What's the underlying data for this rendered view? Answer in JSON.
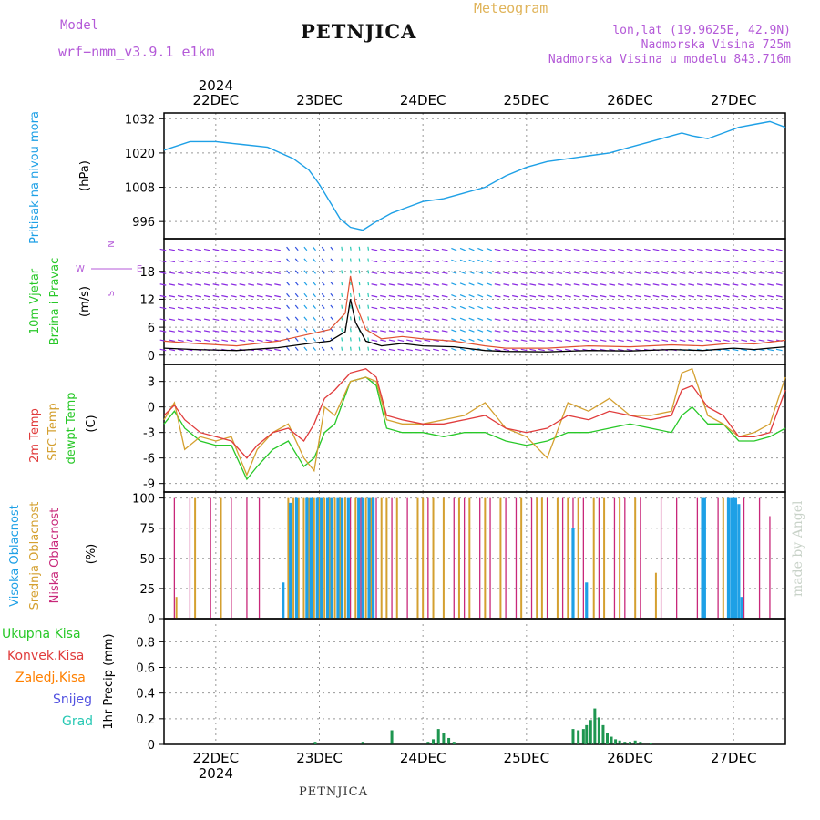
{
  "header": {
    "model_label": "Model",
    "model_name": "wrf−nmm_v3.9.1  e1km",
    "station": "PETNJICA",
    "meteogram": "Meteogram",
    "location": "lon,lat (19.9625E, 42.9N)",
    "elevation": "Nadmorska Visina 725m",
    "elevation_model": "Nadmorska Visina u modelu 843.716m"
  },
  "footer_station": "PETNJICA",
  "watermark": "made by Angel",
  "axis_dates": {
    "top_year": "2024",
    "bottom_year": "2024",
    "labels": [
      "22DEC",
      "23DEC",
      "24DEC",
      "25DEC",
      "26DEC",
      "27DEC"
    ]
  },
  "colors": {
    "pressure": "#1ea0e6",
    "wind_speed": "#000000",
    "wind_gust": "#e05030",
    "temp_2m": "#e03c3c",
    "temp_sfc": "#d4a030",
    "dewpoint": "#28c828",
    "cloud_high": "#1ea0e6",
    "cloud_mid": "#d4a030",
    "cloud_low": "#c8287a",
    "precip_total": "#1e9650",
    "label_green": "#28c828",
    "label_red": "#e03c3c",
    "label_orange": "#ff8000",
    "label_blue": "#5050e0",
    "label_teal": "#28c8b4",
    "label_magenta": "#c8287a",
    "label_purple": "#b45ad8"
  },
  "chart_data": [
    {
      "type": "line",
      "panel": "pressure",
      "ylabel_left": "Pritisak na nivou mora",
      "ylabel_unit": "(hPa)",
      "ylim": [
        990,
        1034
      ],
      "yticks": [
        996,
        1008,
        1020,
        1032
      ],
      "x_start_day": 21.5,
      "x_end_day": 27.5,
      "series": [
        {
          "x": [
            21.5,
            21.75,
            22.0,
            22.25,
            22.5,
            22.75,
            22.9,
            23.0,
            23.1,
            23.2,
            23.3,
            23.42,
            23.55,
            23.7,
            23.85,
            24.0,
            24.2,
            24.4,
            24.6,
            24.8,
            25.0,
            25.2,
            25.4,
            25.6,
            25.8,
            26.0,
            26.2,
            26.4,
            26.5,
            26.6,
            26.75,
            26.9,
            27.05,
            27.2,
            27.35,
            27.5
          ],
          "values": [
            1021,
            1024,
            1024,
            1023,
            1022,
            1018,
            1014,
            1009,
            1003,
            997,
            994,
            993,
            996,
            999,
            1001,
            1003,
            1004,
            1006,
            1008,
            1012,
            1015,
            1017,
            1018,
            1019,
            1020,
            1022,
            1024,
            1026,
            1027,
            1026,
            1025,
            1027,
            1029,
            1030,
            1031,
            1029
          ]
        }
      ]
    },
    {
      "type": "line",
      "panel": "wind",
      "ylabel_left_1": "10m Vjetar",
      "ylabel_left_2": "Brzina i Pravac",
      "ylabel_unit": "(m/s)",
      "compass_n": "N",
      "compass_w": "W",
      "compass_e": "E",
      "compass_s": "S",
      "ylim": [
        -2,
        25
      ],
      "yticks": [
        0,
        6,
        12,
        18
      ],
      "series": [
        {
          "name": "speed",
          "x": [
            21.5,
            21.8,
            22.2,
            22.6,
            22.9,
            23.1,
            23.25,
            23.3,
            23.35,
            23.45,
            23.6,
            23.8,
            24.0,
            24.3,
            24.6,
            24.8,
            25.2,
            25.6,
            26.0,
            26.4,
            26.7,
            27.0,
            27.2,
            27.5
          ],
          "values": [
            1.5,
            1.2,
            1.0,
            1.6,
            2.5,
            3.0,
            5.0,
            12.0,
            7.0,
            3.0,
            2.0,
            2.5,
            2.0,
            1.8,
            1.0,
            0.8,
            0.7,
            1.0,
            0.9,
            1.2,
            1.0,
            1.5,
            1.2,
            1.8
          ]
        },
        {
          "name": "gust",
          "x": [
            21.5,
            21.8,
            22.2,
            22.6,
            22.9,
            23.1,
            23.25,
            23.3,
            23.35,
            23.45,
            23.6,
            23.8,
            24.0,
            24.3,
            24.6,
            24.8,
            25.2,
            25.6,
            26.0,
            26.4,
            26.7,
            27.0,
            27.2,
            27.5
          ],
          "values": [
            3.0,
            2.5,
            2.0,
            3.0,
            4.5,
            5.5,
            9.0,
            17.0,
            11.0,
            5.5,
            3.5,
            4.0,
            3.5,
            3.0,
            2.0,
            1.5,
            1.5,
            2.0,
            1.8,
            2.2,
            2.0,
            2.6,
            2.4,
            3.2
          ]
        }
      ]
    },
    {
      "type": "line",
      "panel": "temperature",
      "ylabel_left_1": "2m Temp",
      "ylabel_left_2": "SFC Temp",
      "ylabel_left_3": "dewpt Temp",
      "ylabel_unit": "(C)",
      "ylim": [
        -10,
        5
      ],
      "yticks": [
        -9,
        -6,
        -3,
        0,
        3
      ],
      "x": [
        21.5,
        21.6,
        21.7,
        21.85,
        22.0,
        22.15,
        22.3,
        22.4,
        22.55,
        22.7,
        22.85,
        22.95,
        23.05,
        23.15,
        23.3,
        23.45,
        23.55,
        23.65,
        23.8,
        24.0,
        24.2,
        24.4,
        24.6,
        24.8,
        25.0,
        25.2,
        25.4,
        25.6,
        25.8,
        26.0,
        26.2,
        26.4,
        26.5,
        26.6,
        26.75,
        26.9,
        27.05,
        27.2,
        27.35,
        27.5
      ],
      "series": [
        {
          "name": "2m",
          "values": [
            -1.0,
            0.2,
            -1.5,
            -3.0,
            -3.5,
            -4.0,
            -6.0,
            -4.5,
            -3.0,
            -2.5,
            -4.0,
            -2.0,
            1.0,
            2.0,
            4.0,
            4.5,
            3.5,
            -1.0,
            -1.5,
            -2.0,
            -2.0,
            -1.5,
            -1.0,
            -2.5,
            -3.0,
            -2.5,
            -1.0,
            -1.5,
            -0.5,
            -1.0,
            -1.5,
            -1.0,
            2.0,
            2.5,
            0.0,
            -1.0,
            -3.5,
            -3.5,
            -3.0,
            2.0
          ]
        },
        {
          "name": "sfc",
          "values": [
            -1.5,
            0.5,
            -5.0,
            -3.5,
            -4.0,
            -3.5,
            -8.0,
            -5.0,
            -3.0,
            -2.0,
            -6.0,
            -7.5,
            0.0,
            -1.0,
            3.0,
            3.5,
            3.0,
            -1.5,
            -2.0,
            -2.0,
            -1.5,
            -1.0,
            0.5,
            -2.5,
            -3.5,
            -6.0,
            0.5,
            -0.5,
            1.0,
            -1.0,
            -1.0,
            -0.5,
            4.0,
            4.5,
            -1.0,
            -2.0,
            -3.5,
            -3.0,
            -2.0,
            3.5
          ]
        },
        {
          "name": "dewpt",
          "values": [
            -2.0,
            -0.5,
            -2.5,
            -4.0,
            -4.5,
            -4.5,
            -8.5,
            -7.0,
            -5.0,
            -4.0,
            -7.0,
            -6.0,
            -3.0,
            -2.0,
            3.0,
            3.5,
            2.5,
            -2.5,
            -3.0,
            -3.0,
            -3.5,
            -3.0,
            -3.0,
            -4.0,
            -4.5,
            -4.0,
            -3.0,
            -3.0,
            -2.5,
            -2.0,
            -2.5,
            -3.0,
            -1.0,
            0.0,
            -2.0,
            -2.0,
            -4.0,
            -4.0,
            -3.5,
            -2.5
          ]
        }
      ]
    },
    {
      "type": "bar",
      "panel": "clouds",
      "ylabel_left_1": "Visoka Oblacnost",
      "ylabel_left_2": "Srednja Oblacnost",
      "ylabel_left_3": "Niska Oblacnost",
      "ylabel_unit": "(%)",
      "ylim": [
        0,
        105
      ],
      "yticks": [
        0,
        25,
        50,
        75,
        100
      ],
      "series": [
        {
          "name": "low",
          "x": [
            21.6,
            21.75,
            21.95,
            22.05,
            22.15,
            22.3,
            22.42,
            23.3,
            23.4,
            23.55,
            23.7,
            23.85,
            24.05,
            24.2,
            24.3,
            24.4,
            24.55,
            24.65,
            24.8,
            24.9,
            25.05,
            25.2,
            25.35,
            25.45,
            25.55,
            25.7,
            25.85,
            25.95,
            26.1,
            26.3,
            26.45,
            26.65,
            26.85,
            26.95,
            27.1,
            27.25,
            27.35
          ],
          "values": [
            100,
            100,
            100,
            100,
            100,
            100,
            100,
            100,
            100,
            100,
            100,
            100,
            100,
            100,
            100,
            100,
            100,
            100,
            100,
            100,
            100,
            100,
            100,
            100,
            100,
            100,
            100,
            100,
            100,
            100,
            100,
            100,
            100,
            100,
            100,
            100,
            85
          ]
        },
        {
          "name": "mid",
          "x": [
            21.62,
            21.8,
            22.05,
            22.7,
            22.75,
            22.8,
            22.85,
            22.9,
            22.95,
            23.0,
            23.05,
            23.1,
            23.15,
            23.2,
            23.25,
            23.35,
            23.45,
            23.5,
            23.6,
            23.65,
            23.75,
            23.95,
            24.0,
            24.1,
            24.2,
            24.35,
            24.45,
            24.6,
            24.75,
            24.95,
            25.1,
            25.15,
            25.3,
            25.4,
            25.5,
            25.65,
            25.75,
            25.9,
            26.05,
            26.25,
            26.9
          ],
          "values": [
            18,
            100,
            100,
            100,
            100,
            100,
            100,
            100,
            100,
            100,
            100,
            100,
            100,
            100,
            100,
            100,
            100,
            100,
            100,
            100,
            100,
            100,
            100,
            100,
            100,
            100,
            100,
            100,
            100,
            100,
            100,
            100,
            100,
            100,
            100,
            100,
            100,
            100,
            100,
            38,
            100
          ]
        },
        {
          "name": "high",
          "x": [
            22.65,
            22.72,
            22.78,
            22.88,
            22.92,
            22.98,
            23.02,
            23.08,
            23.12,
            23.18,
            23.22,
            23.28,
            23.38,
            23.42,
            23.48,
            23.52,
            25.45,
            25.58,
            26.7,
            26.72,
            26.95,
            26.98,
            27.0,
            27.02,
            27.05,
            27.08
          ],
          "values": [
            30,
            96,
            100,
            100,
            100,
            100,
            100,
            100,
            100,
            100,
            100,
            100,
            100,
            100,
            100,
            100,
            75,
            30,
            100,
            100,
            100,
            100,
            100,
            100,
            95,
            18
          ]
        }
      ]
    },
    {
      "type": "bar",
      "panel": "precip",
      "legend": [
        "Ukupna  Kisa",
        "Konvek.Kisa",
        "Zaledj.Kisa",
        "Snijeg",
        "Grad"
      ],
      "ylabel_unit": "1hr Precip (mm)",
      "ylim": [
        0,
        0.98
      ],
      "yticks": [
        0,
        0.2,
        0.4,
        0.6,
        0.8
      ],
      "series": [
        {
          "name": "Ukupna  Kisa",
          "x": [
            22.96,
            23.42,
            23.7,
            24.05,
            24.1,
            24.15,
            24.2,
            24.25,
            24.3,
            25.45,
            25.5,
            25.55,
            25.58,
            25.62,
            25.66,
            25.7,
            25.74,
            25.78,
            25.82,
            25.86,
            25.9,
            25.95,
            26.0,
            26.05,
            26.1,
            26.2
          ],
          "values": [
            0.02,
            0.02,
            0.11,
            0.02,
            0.04,
            0.12,
            0.09,
            0.05,
            0.02,
            0.12,
            0.11,
            0.12,
            0.15,
            0.19,
            0.28,
            0.21,
            0.15,
            0.09,
            0.06,
            0.04,
            0.03,
            0.02,
            0.02,
            0.03,
            0.02,
            0.01
          ]
        }
      ]
    }
  ]
}
